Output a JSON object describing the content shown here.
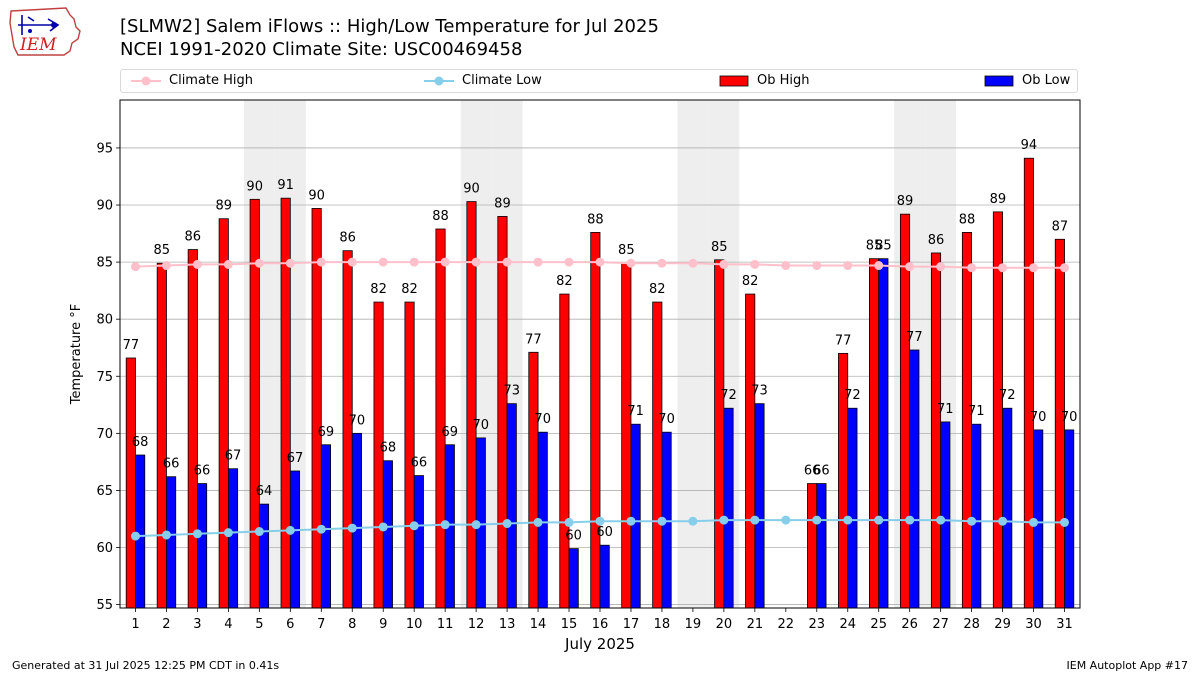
{
  "header": {
    "title_line1": "[SLMW2] Salem iFlows :: High/Low Temperature for Jul 2025",
    "title_line2": "NCEI 1991-2020 Climate Site: USC00469458"
  },
  "logo": {
    "name": "IEM",
    "icon": "iowa-state-outline-logo"
  },
  "footer": {
    "generated": "Generated at 31 Jul 2025 12:25 PM CDT in 0.41s",
    "app": "IEM Autoplot App #17"
  },
  "colors": {
    "ob_high": "#ff0000",
    "ob_low": "#0000ff",
    "climate_high": "#ffc0cb",
    "climate_low": "#87ceeb",
    "weekend_shade": "#eeeeee",
    "grid": "#b0b0b0"
  },
  "chart_data": {
    "type": "bar",
    "xlabel": "July 2025",
    "ylabel": "Temperature °F",
    "ylim": [
      54.7,
      99.2
    ],
    "yticks": [
      55,
      60,
      65,
      70,
      75,
      80,
      85,
      90,
      95
    ],
    "grid": "horizontal",
    "legend_placement": "top",
    "categories": [
      "1",
      "2",
      "3",
      "4",
      "5",
      "6",
      "7",
      "8",
      "9",
      "10",
      "11",
      "12",
      "13",
      "14",
      "15",
      "16",
      "17",
      "18",
      "19",
      "20",
      "21",
      "22",
      "23",
      "24",
      "25",
      "26",
      "27",
      "28",
      "29",
      "30",
      "31"
    ],
    "shaded_days": [
      "5",
      "6",
      "12",
      "13",
      "19",
      "20",
      "26",
      "27"
    ],
    "series": [
      {
        "name": "Climate High",
        "kind": "line",
        "values": [
          84.6,
          84.7,
          84.8,
          84.8,
          84.9,
          84.9,
          85.0,
          85.0,
          85.0,
          85.0,
          85.0,
          85.0,
          85.0,
          85.0,
          85.0,
          85.0,
          84.9,
          84.9,
          84.9,
          84.8,
          84.8,
          84.7,
          84.7,
          84.7,
          84.7,
          84.6,
          84.6,
          84.5,
          84.5,
          84.5,
          84.5
        ]
      },
      {
        "name": "Climate Low",
        "kind": "line",
        "values": [
          61.0,
          61.1,
          61.2,
          61.3,
          61.4,
          61.5,
          61.6,
          61.7,
          61.8,
          61.9,
          62.0,
          62.0,
          62.1,
          62.2,
          62.2,
          62.3,
          62.3,
          62.3,
          62.3,
          62.4,
          62.4,
          62.4,
          62.4,
          62.4,
          62.4,
          62.4,
          62.4,
          62.3,
          62.3,
          62.2,
          62.2
        ]
      },
      {
        "name": "Ob High",
        "kind": "bar",
        "values": [
          76.6,
          84.9,
          86.1,
          88.8,
          90.5,
          90.6,
          89.7,
          86.0,
          81.5,
          81.5,
          87.9,
          90.3,
          89.0,
          77.1,
          82.2,
          87.6,
          84.9,
          81.5,
          null,
          85.2,
          82.2,
          null,
          65.6,
          77.0,
          85.3,
          89.2,
          85.8,
          87.6,
          89.4,
          94.1,
          87.0
        ],
        "labels": [
          "77",
          "85",
          "86",
          "89",
          "90",
          "91",
          "90",
          "86",
          "82",
          "82",
          "88",
          "90",
          "89",
          "77",
          "82",
          "88",
          "85",
          "82",
          "",
          "85",
          "82",
          "",
          "66",
          "77",
          "85",
          "89",
          "86",
          "88",
          "89",
          "94",
          "87"
        ]
      },
      {
        "name": "Ob Low",
        "kind": "bar",
        "values": [
          68.1,
          66.2,
          65.6,
          66.9,
          63.8,
          66.7,
          69.0,
          70.0,
          67.6,
          66.3,
          69.0,
          69.6,
          72.6,
          70.1,
          59.9,
          60.2,
          70.8,
          70.1,
          null,
          72.2,
          72.6,
          null,
          65.6,
          72.2,
          85.3,
          77.3,
          71.0,
          70.8,
          72.2,
          70.3,
          70.3
        ],
        "labels": [
          "68",
          "66",
          "66",
          "67",
          "64",
          "67",
          "69",
          "70",
          "68",
          "66",
          "69",
          "70",
          "73",
          "70",
          "60",
          "60",
          "71",
          "70",
          "",
          "72",
          "73",
          "",
          "66",
          "72",
          "85",
          "77",
          "71",
          "71",
          "72",
          "70",
          "70"
        ]
      }
    ]
  }
}
